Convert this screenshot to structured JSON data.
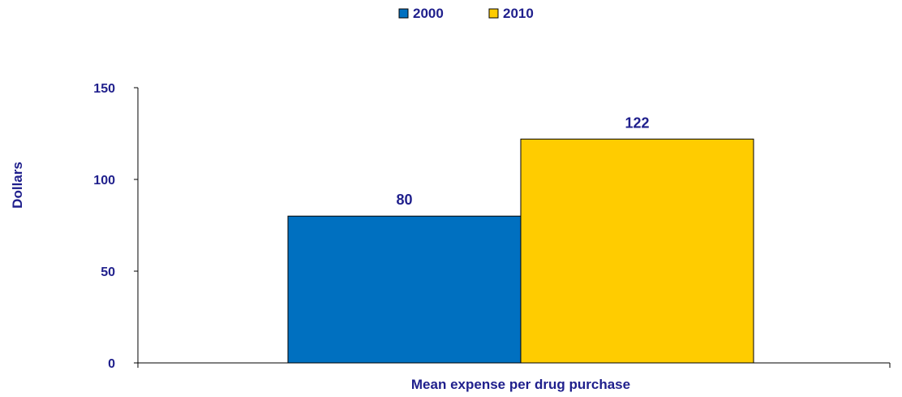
{
  "chart_data": {
    "type": "bar",
    "categories": [
      "Mean expense per drug purchase"
    ],
    "series": [
      {
        "name": "2000",
        "values": [
          80
        ]
      },
      {
        "name": "2010",
        "values": [
          122
        ]
      }
    ],
    "data_labels": [
      "80",
      "122"
    ],
    "xlabel": "Mean expense per drug purchase",
    "ylabel": "Dollars",
    "ylim": [
      0,
      150
    ],
    "yticks": [
      0,
      50,
      100,
      150
    ],
    "ytick_labels": [
      "0",
      "50",
      "100",
      "150"
    ],
    "grid": false,
    "legend_position": "top-center"
  },
  "colors": {
    "series_2000": "#0070C0",
    "series_2010": "#FFCC00",
    "text": "#1F1F8C",
    "axis": "#000000",
    "bar_edge": "#000000"
  }
}
